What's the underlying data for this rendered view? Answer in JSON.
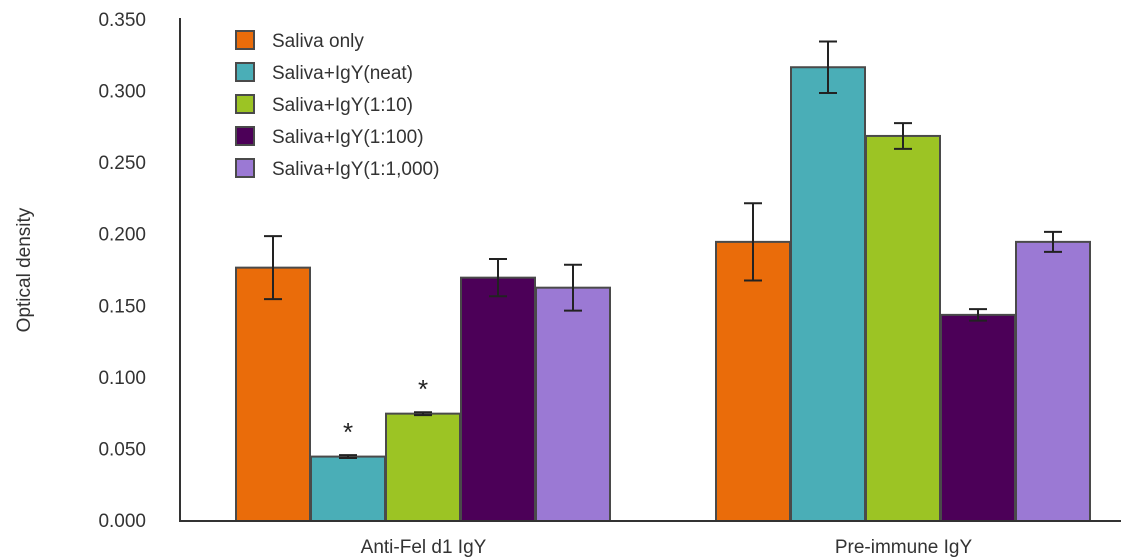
{
  "chart_data": {
    "type": "bar",
    "title": "",
    "xlabel": "",
    "ylabel": "Optical density",
    "ylim": [
      0,
      0.35
    ],
    "yticks": [
      "0.000",
      "0.050",
      "0.100",
      "0.150",
      "0.200",
      "0.250",
      "0.300",
      "0.350"
    ],
    "grid": false,
    "legend_position": "top-left",
    "categories": [
      "Anti-Fel d1 IgY",
      "Pre-immune IgY"
    ],
    "series": [
      {
        "name": "Saliva only",
        "color": "#ea6c0a",
        "values": [
          0.177,
          0.195
        ],
        "errors": [
          0.022,
          0.027
        ],
        "significance": [
          "",
          ""
        ]
      },
      {
        "name": "Saliva+IgY(neat)",
        "color": "#4aaeb7",
        "values": [
          0.045,
          0.317
        ],
        "errors": [
          0.001,
          0.018
        ],
        "significance": [
          "*",
          ""
        ]
      },
      {
        "name": "Saliva+IgY(1:10)",
        "color": "#9cc424",
        "values": [
          0.075,
          0.269
        ],
        "errors": [
          0.001,
          0.009
        ],
        "significance": [
          "*",
          ""
        ]
      },
      {
        "name": "Saliva+IgY(1:100)",
        "color": "#4c0058",
        "values": [
          0.17,
          0.144
        ],
        "errors": [
          0.013,
          0.004
        ],
        "significance": [
          "",
          ""
        ]
      },
      {
        "name": "Saliva+IgY(1:1,000)",
        "color": "#9b79d4",
        "values": [
          0.163,
          0.195
        ],
        "errors": [
          0.016,
          0.007
        ],
        "significance": [
          "",
          ""
        ]
      }
    ]
  }
}
